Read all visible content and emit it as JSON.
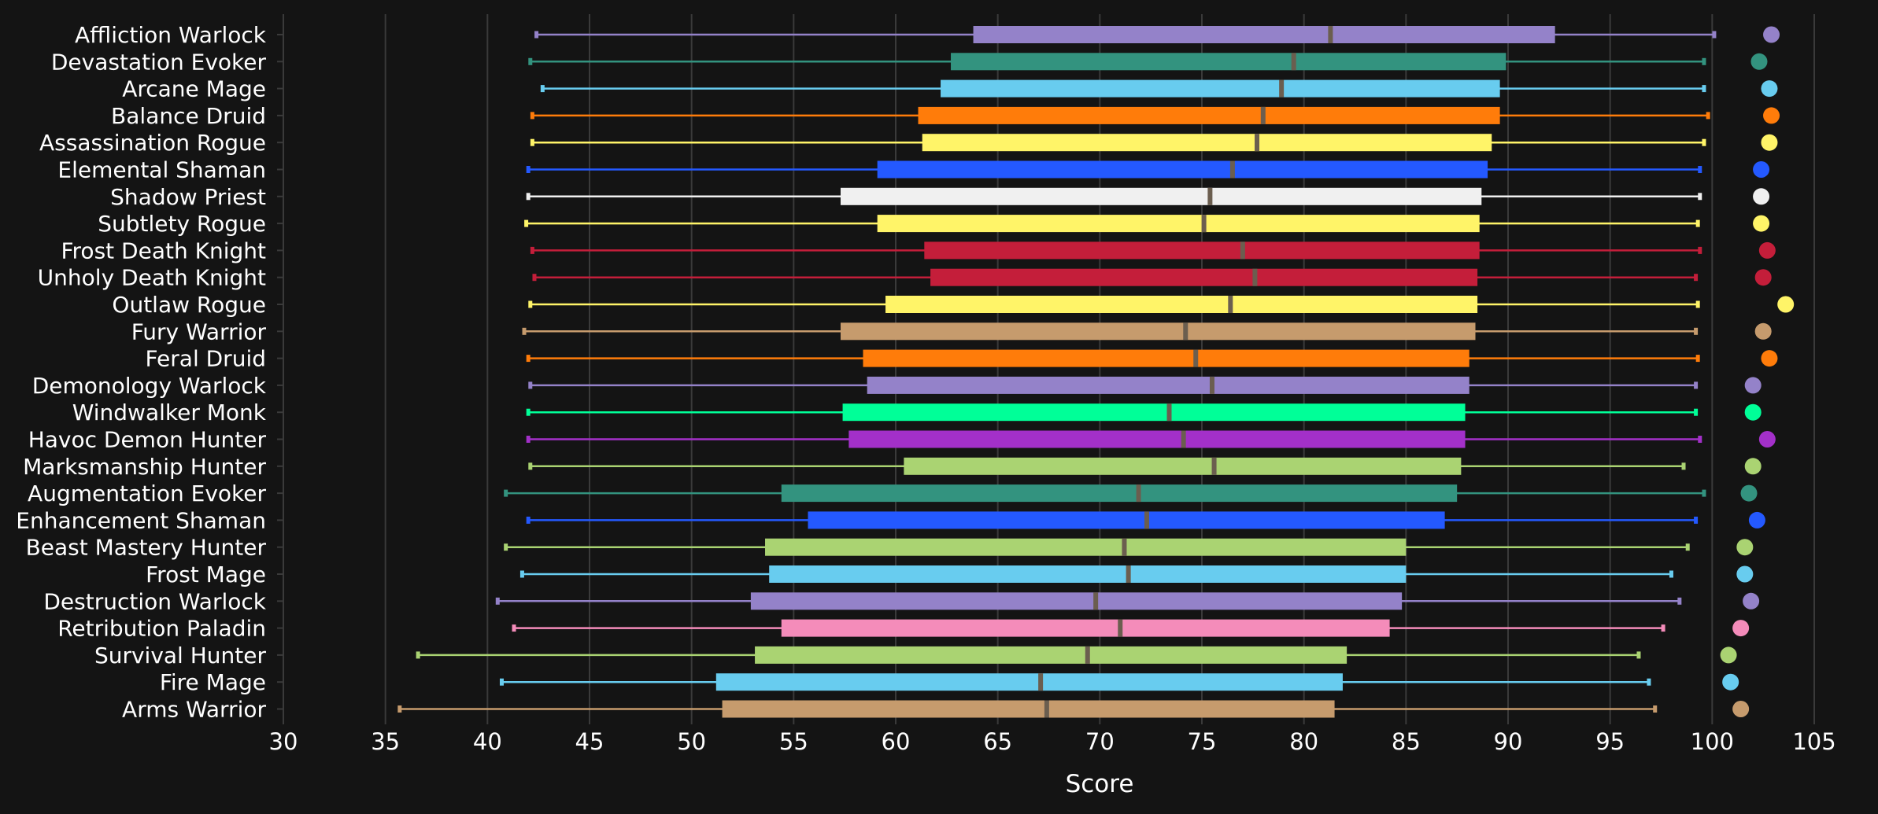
{
  "colors": {
    "background": "#141414",
    "grid": "#3a3a3a",
    "axis_text": "#ffffff",
    "label_text": "#ffffff",
    "median_line": "#6b5e4f"
  },
  "chart_data": {
    "type": "box",
    "xlabel": "Score",
    "ylabel": "",
    "xlim": [
      30,
      105
    ],
    "xticks": [
      30,
      35,
      40,
      45,
      50,
      55,
      60,
      65,
      70,
      75,
      80,
      85,
      90,
      95,
      100,
      105
    ],
    "xtick_labels": [
      "30",
      "35",
      "40",
      "45",
      "50",
      "55",
      "60",
      "65",
      "70",
      "75",
      "80",
      "85",
      "90",
      "95",
      "100",
      "105"
    ],
    "grid": "vertical",
    "series": [
      {
        "label": "Affliction Warlock",
        "color": "#9482c9",
        "min": 42.4,
        "q1": 63.8,
        "median": 81.3,
        "q3": 92.3,
        "max": 100.1,
        "outlier": 102.9
      },
      {
        "label": "Devastation Evoker",
        "color": "#33937f",
        "min": 42.1,
        "q1": 62.7,
        "median": 79.5,
        "q3": 89.9,
        "max": 99.6,
        "outlier": 102.3
      },
      {
        "label": "Arcane Mage",
        "color": "#68ccef",
        "min": 42.7,
        "q1": 62.2,
        "median": 78.9,
        "q3": 89.6,
        "max": 99.6,
        "outlier": 102.8
      },
      {
        "label": "Balance Druid",
        "color": "#ff7c0a",
        "min": 42.2,
        "q1": 61.1,
        "median": 78.0,
        "q3": 89.6,
        "max": 99.8,
        "outlier": 102.9
      },
      {
        "label": "Assassination Rogue",
        "color": "#fff468",
        "min": 42.2,
        "q1": 61.3,
        "median": 77.7,
        "q3": 89.2,
        "max": 99.6,
        "outlier": 102.8
      },
      {
        "label": "Elemental Shaman",
        "color": "#2459ff",
        "min": 42.0,
        "q1": 59.1,
        "median": 76.5,
        "q3": 89.0,
        "max": 99.4,
        "outlier": 102.4
      },
      {
        "label": "Shadow Priest",
        "color": "#f0f0f0",
        "min": 42.0,
        "q1": 57.3,
        "median": 75.4,
        "q3": 88.7,
        "max": 99.4,
        "outlier": 102.4
      },
      {
        "label": "Subtlety Rogue",
        "color": "#fff468",
        "min": 41.9,
        "q1": 59.1,
        "median": 75.1,
        "q3": 88.6,
        "max": 99.3,
        "outlier": 102.4
      },
      {
        "label": "Frost Death Knight",
        "color": "#c41e3a",
        "min": 42.2,
        "q1": 61.4,
        "median": 77.0,
        "q3": 88.6,
        "max": 99.4,
        "outlier": 102.7
      },
      {
        "label": "Unholy Death Knight",
        "color": "#c41e3a",
        "min": 42.3,
        "q1": 61.7,
        "median": 77.6,
        "q3": 88.5,
        "max": 99.2,
        "outlier": 102.5
      },
      {
        "label": "Outlaw Rogue",
        "color": "#fff468",
        "min": 42.1,
        "q1": 59.5,
        "median": 76.4,
        "q3": 88.5,
        "max": 99.3,
        "outlier": 103.6
      },
      {
        "label": "Fury Warrior",
        "color": "#c69b6d",
        "min": 41.8,
        "q1": 57.3,
        "median": 74.2,
        "q3": 88.4,
        "max": 99.2,
        "outlier": 102.5
      },
      {
        "label": "Feral Druid",
        "color": "#ff7c0a",
        "min": 42.0,
        "q1": 58.4,
        "median": 74.7,
        "q3": 88.1,
        "max": 99.3,
        "outlier": 102.8
      },
      {
        "label": "Demonology Warlock",
        "color": "#9482c9",
        "min": 42.1,
        "q1": 58.6,
        "median": 75.5,
        "q3": 88.1,
        "max": 99.2,
        "outlier": 102.0
      },
      {
        "label": "Windwalker Monk",
        "color": "#00ff98",
        "min": 42.0,
        "q1": 57.4,
        "median": 73.4,
        "q3": 87.9,
        "max": 99.2,
        "outlier": 102.0
      },
      {
        "label": "Havoc Demon Hunter",
        "color": "#a330c9",
        "min": 42.0,
        "q1": 57.7,
        "median": 74.1,
        "q3": 87.9,
        "max": 99.4,
        "outlier": 102.7
      },
      {
        "label": "Marksmanship Hunter",
        "color": "#aad372",
        "min": 42.1,
        "q1": 60.4,
        "median": 75.6,
        "q3": 87.7,
        "max": 98.6,
        "outlier": 102.0
      },
      {
        "label": "Augmentation Evoker",
        "color": "#33937f",
        "min": 40.9,
        "q1": 54.4,
        "median": 71.9,
        "q3": 87.5,
        "max": 99.6,
        "outlier": 101.8
      },
      {
        "label": "Enhancement Shaman",
        "color": "#2459ff",
        "min": 42.0,
        "q1": 55.7,
        "median": 72.3,
        "q3": 86.9,
        "max": 99.2,
        "outlier": 102.2
      },
      {
        "label": "Beast Mastery Hunter",
        "color": "#aad372",
        "min": 40.9,
        "q1": 53.6,
        "median": 71.2,
        "q3": 85.0,
        "max": 98.8,
        "outlier": 101.6
      },
      {
        "label": "Frost Mage",
        "color": "#68ccef",
        "min": 41.7,
        "q1": 53.8,
        "median": 71.4,
        "q3": 85.0,
        "max": 98.0,
        "outlier": 101.6
      },
      {
        "label": "Destruction Warlock",
        "color": "#9482c9",
        "min": 40.5,
        "q1": 52.9,
        "median": 69.8,
        "q3": 84.8,
        "max": 98.4,
        "outlier": 101.9
      },
      {
        "label": "Retribution Paladin",
        "color": "#f48cba",
        "min": 41.3,
        "q1": 54.4,
        "median": 71.0,
        "q3": 84.2,
        "max": 97.6,
        "outlier": 101.4
      },
      {
        "label": "Survival Hunter",
        "color": "#aad372",
        "min": 36.6,
        "q1": 53.1,
        "median": 69.4,
        "q3": 82.1,
        "max": 96.4,
        "outlier": 100.8
      },
      {
        "label": "Fire Mage",
        "color": "#68ccef",
        "min": 40.7,
        "q1": 51.2,
        "median": 67.1,
        "q3": 81.9,
        "max": 96.9,
        "outlier": 100.9
      },
      {
        "label": "Arms Warrior",
        "color": "#c69b6d",
        "min": 35.7,
        "q1": 51.5,
        "median": 67.4,
        "q3": 81.5,
        "max": 97.2,
        "outlier": 101.4
      }
    ]
  }
}
